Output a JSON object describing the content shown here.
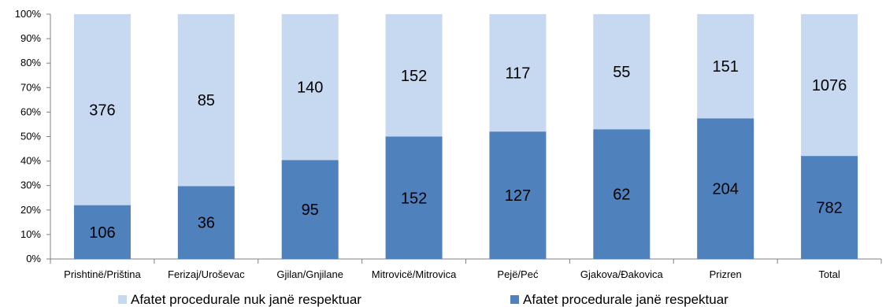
{
  "chart_data": {
    "type": "bar",
    "stacked": "percent",
    "categories": [
      "Prishtinë/Priština",
      "Ferizaj/Uroševac",
      "Gjilan/Gnjilane",
      "Mitrovicë/Mitrovica",
      "Pejë/Peć",
      "Gjakova/Đakovica",
      "Prizren",
      "Total"
    ],
    "series": [
      {
        "name": "Afatet procedurale janë respektuar",
        "color": "#4f81bd",
        "values": [
          106,
          36,
          95,
          152,
          127,
          62,
          204,
          782
        ]
      },
      {
        "name": "Afatet procedurale nuk janë respektuar",
        "color": "#c6d9f1",
        "values": [
          376,
          85,
          140,
          152,
          117,
          55,
          151,
          1076
        ]
      }
    ],
    "y_ticks": [
      "0%",
      "10%",
      "20%",
      "30%",
      "40%",
      "50%",
      "60%",
      "70%",
      "80%",
      "90%",
      "100%"
    ],
    "ylim": [
      0,
      100
    ],
    "grid": false,
    "legend": [
      "Afatet procedurale nuk janë respektuar",
      "Afatet procedurale janë respektuar"
    ],
    "legend_position": "bottom"
  }
}
